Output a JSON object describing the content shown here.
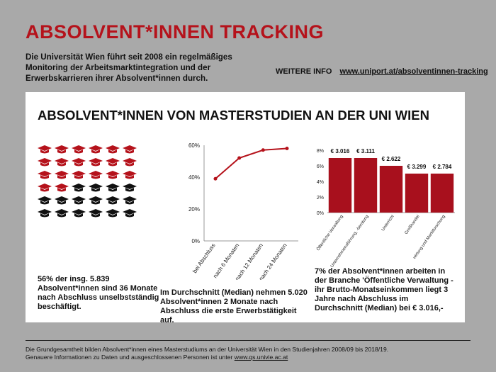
{
  "header": {
    "title": "ABSOLVENT*INNEN TRACKING",
    "intro": "Die Universität Wien führt seit 2008 ein regelmäßiges Monitoring der Arbeitsmarktintegration und der Erwerbskarrieren ihrer Absolvent*innen durch.",
    "more_info_label": "WEITERE INFO",
    "more_info_url": "www.uniport.at/absolventinnen-tracking"
  },
  "panel": {
    "title": "ABSOLVENT*INNEN VON MASTERSTUDIEN AN DER UNI WIEN",
    "caps": {
      "total": 36,
      "highlighted": 20,
      "per_row": 6,
      "highlight_color": "#b5121b",
      "other_color": "#111111",
      "icon": "graduation-cap-icon"
    },
    "stat1": "56% der insg. 5.839 Absolvent*innen sind 36 Monate nach Abschluss unselbstständig beschäftigt.",
    "stat2": "Im Durchschnitt (Median) nehmen 5.020 Absolvent*innen 2 Monate nach Abschluss die erste Erwerbstätigkeit auf.",
    "stat3": "7% der Absolvent*innen arbeiten in der Branche 'Öffentliche Verwaltung - ihr Brutto-Monatseinkommen liegt 3 Jahre nach Abschluss im Durchschnitt (Median) bei € 3.016,-"
  },
  "chart_data": [
    {
      "type": "line",
      "categories": [
        "bei Abschluss",
        "nach 6 Monaten",
        "nach 12 Monaten",
        "nach 24 Monaten"
      ],
      "values": [
        39,
        52,
        57,
        58
      ],
      "ylim": [
        0,
        60
      ],
      "yticks": [
        "0%",
        "20%",
        "40%",
        "60%"
      ],
      "grid": false,
      "color": "#b5121b"
    },
    {
      "type": "bar",
      "categories": [
        "Öffentliche Verwaltung",
        "Unternehmensführung, -beratung",
        "Unterricht",
        "Großhandel",
        "wirtung und Marktforschung"
      ],
      "values": [
        7,
        7,
        6,
        5,
        5
      ],
      "data_labels": [
        "€ 3.016",
        "€ 3.111",
        "€ 2.622",
        "€ 3.299",
        "€ 2.784"
      ],
      "ylim": [
        0,
        8
      ],
      "yticks": [
        "0%",
        "2%",
        "4%",
        "6%",
        "8%"
      ],
      "grid": false,
      "color": "#a8101d"
    }
  ],
  "footer": {
    "line1": "Die Grundgesamtheit bilden Absolvent*innen eines Masterstudiums an der Universität Wien in den Studienjahren 2008/09 bis 2018/19.",
    "line2_text": "Genauere Informationen zu Daten und ausgeschlossenen Personen ist unter",
    "line2_url": "www.qs.univie.ac.at"
  }
}
